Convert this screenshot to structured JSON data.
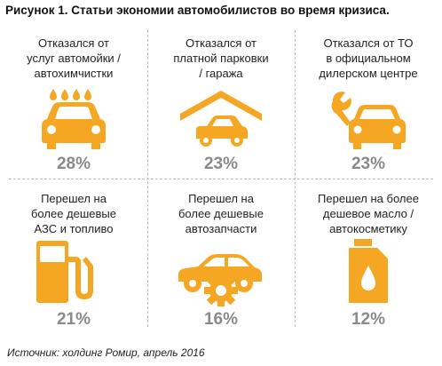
{
  "title": "Рисунок 1. Статьи экономии автомобилистов во время кризиса.",
  "source": "Источник: холдинг Ромир, апрель 2016",
  "colors": {
    "icon": "#f5a623",
    "value": "#8a8a8a",
    "divider": "#bbbbbb"
  },
  "chart_data": {
    "type": "table",
    "title": "Рисунок 1. Статьи экономии автомобилистов во время кризиса.",
    "categories": [
      "Отказался от услуг автомойки / автохимчистки",
      "Отказался от платной парковки / гаража",
      "Отказался от ТО в официальном дилерском центре",
      "Перешел на более дешевые АЗС и топливо",
      "Перешел на более дешевые автозапчасти",
      "Перешел на более дешевое масло / автокосметику"
    ],
    "values": [
      28,
      23,
      23,
      21,
      16,
      12
    ],
    "unit": "%"
  },
  "items": [
    {
      "label": "Отказался от\nуслуг автомойки /\nавтохимчистки",
      "value": "28%",
      "icon": "car-wash-icon"
    },
    {
      "label": "Отказался от\nплатной парковки\n/ гаража",
      "value": "23%",
      "icon": "garage-icon"
    },
    {
      "label": "Отказался от ТО\nв официальном\nдилерском центре",
      "value": "23%",
      "icon": "car-service-icon"
    },
    {
      "label": "Перешел на\nболее дешевые\nАЗС и топливо",
      "value": "21%",
      "icon": "fuel-pump-icon"
    },
    {
      "label": "Перешел на\nболее дешевые\nавтозапчасти",
      "value": "16%",
      "icon": "car-parts-icon"
    },
    {
      "label": "Перешел на более\nдешевое масло /\nавтокосметику",
      "value": "12%",
      "icon": "oil-canister-icon"
    }
  ]
}
